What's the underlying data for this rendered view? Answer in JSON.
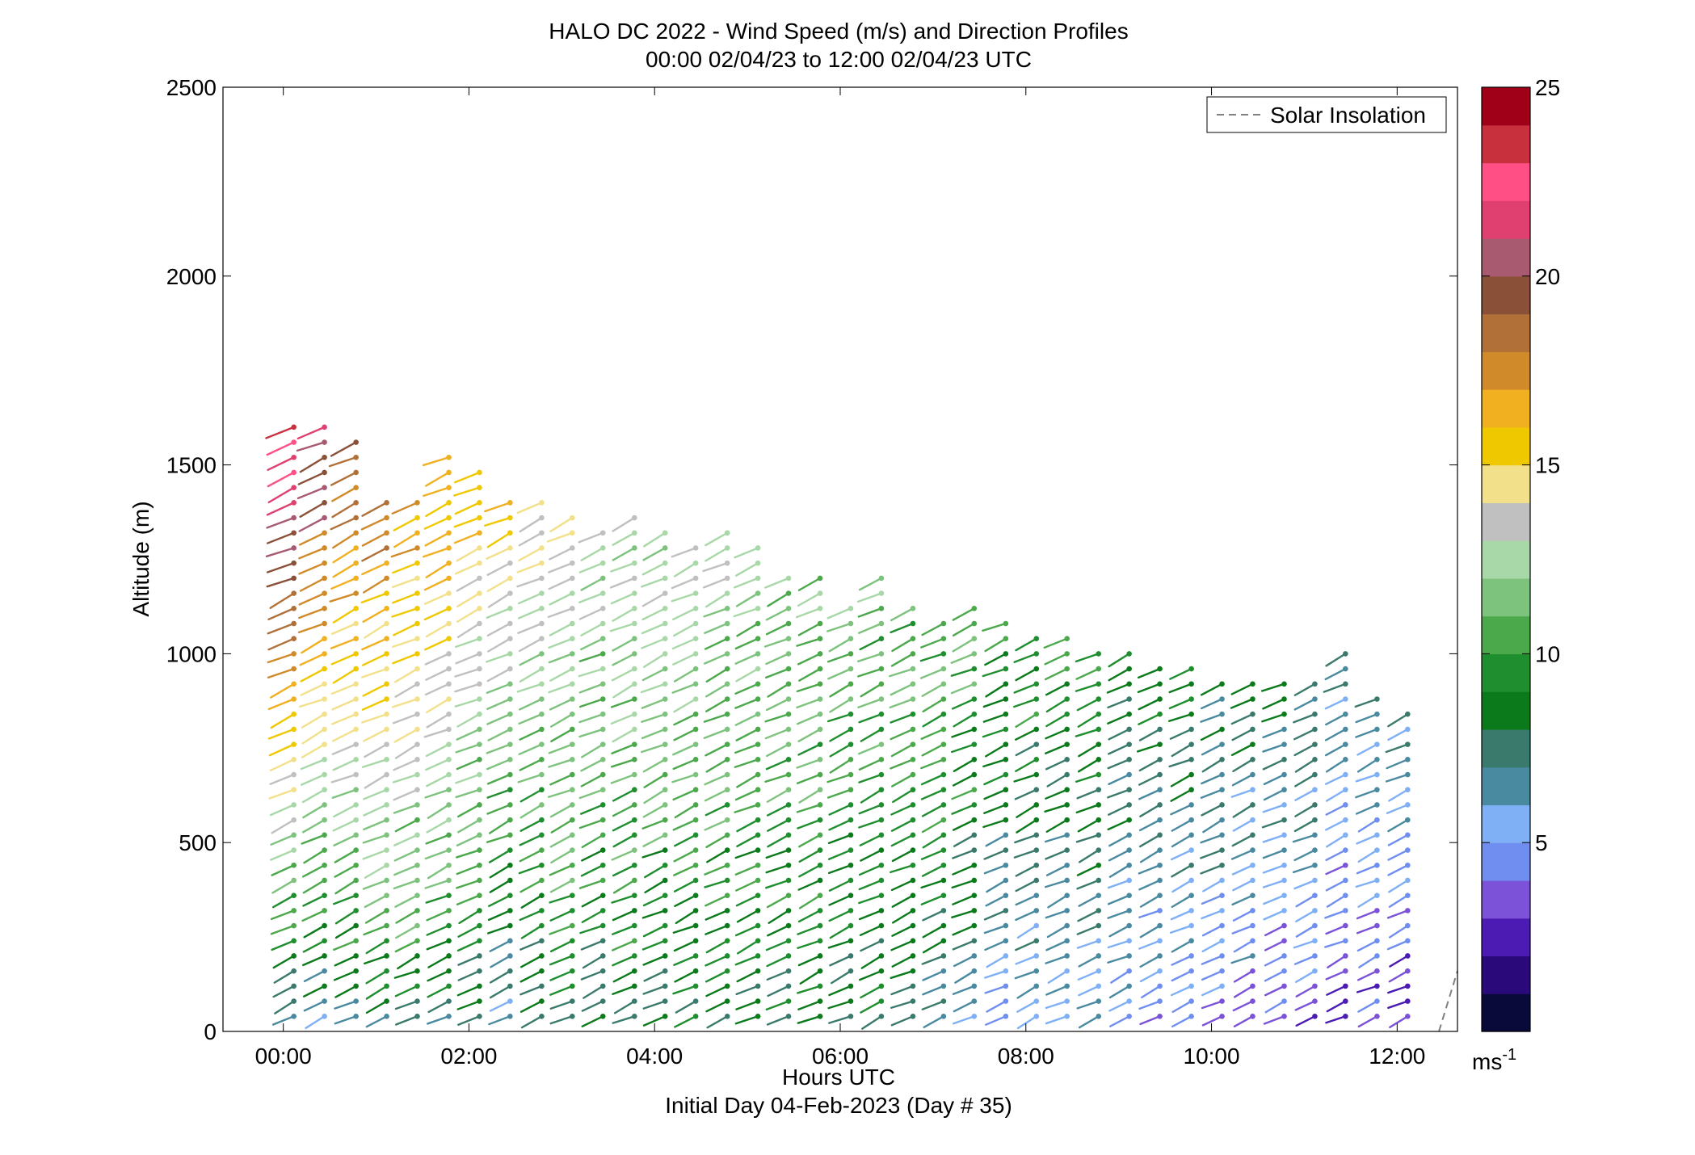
{
  "chart_data": {
    "type": "scatter",
    "subtype": "wind-barb-profile",
    "title_line1": "HALO DC 2022 - Wind Speed (m/s) and Direction Profiles",
    "title_line2": "00:00 02/04/23 to 12:00 02/04/23  UTC",
    "xlabel": "Hours UTC",
    "xlabel_sub": "Initial Day 04-Feb-2023 (Day # 35)",
    "ylabel": "Altitude (m)",
    "xlim": [
      -0.65,
      12.65
    ],
    "ylim": [
      0,
      2500
    ],
    "x_ticks": [
      0,
      2,
      4,
      6,
      8,
      10,
      12
    ],
    "x_tick_labels": [
      "00:00",
      "02:00",
      "04:00",
      "06:00",
      "08:00",
      "10:00",
      "12:00"
    ],
    "y_ticks": [
      0,
      500,
      1000,
      1500,
      2000,
      2500
    ],
    "y_tick_labels": [
      "0",
      "500",
      "1000",
      "1500",
      "2000",
      "2500"
    ],
    "legend": {
      "entries": [
        "Solar Insolation"
      ],
      "placement": "top-right",
      "line_style": "dashed",
      "color": "#808080"
    },
    "solar_insolation": {
      "x": [
        12.45,
        12.65
      ],
      "y": [
        0,
        160
      ]
    },
    "colorbar": {
      "label": "ms-1",
      "label_main": "ms",
      "label_sup": "-1",
      "range": [
        0,
        25
      ],
      "ticks": [
        5,
        10,
        15,
        20,
        25
      ],
      "tick_labels": [
        "5",
        "10",
        "15",
        "20",
        "25"
      ],
      "colors": [
        "#0a0a3a",
        "#2a0a7a",
        "#4b1bb4",
        "#7b52d8",
        "#6f8ef0",
        "#7fb0f5",
        "#4a8aa0",
        "#3a7a6c",
        "#0a7a1a",
        "#1e8e2e",
        "#4ba84b",
        "#7dc27d",
        "#a8d8a8",
        "#c0c0c0",
        "#f2e08a",
        "#f0c800",
        "#f0b020",
        "#d08a2a",
        "#b07038",
        "#8a5038",
        "#a85a70",
        "#e04070",
        "#ff4f85",
        "#c8303e",
        "#a00018"
      ]
    },
    "profile_times": [
      0.0,
      0.33,
      0.67,
      1.0,
      1.33,
      1.67,
      2.0,
      2.33,
      2.67,
      3.0,
      3.33,
      3.67,
      4.0,
      4.33,
      4.67,
      5.0,
      5.33,
      5.67,
      6.0,
      6.33,
      6.67,
      7.0,
      7.33,
      7.67,
      8.0,
      8.33,
      8.67,
      9.0,
      9.33,
      9.67,
      10.0,
      10.33,
      10.67,
      11.0,
      11.33,
      11.67,
      12.0
    ],
    "profile_top_heights": [
      1610,
      1610,
      1570,
      1410,
      1410,
      1530,
      1490,
      1410,
      1410,
      1370,
      1330,
      1370,
      1330,
      1290,
      1330,
      1290,
      1210,
      1210,
      1130,
      1210,
      1130,
      1090,
      1130,
      1090,
      1050,
      1050,
      1010,
      1010,
      970,
      970,
      950,
      950,
      950,
      930,
      1010,
      890,
      850
    ],
    "barb_spacing_m": 40,
    "barb_base_m": 40,
    "speed_profile_note_low": [
      6,
      6,
      7,
      8,
      8,
      8,
      7,
      6,
      7,
      8,
      8,
      8,
      8,
      8,
      8,
      8,
      8,
      8,
      8,
      8,
      7,
      7,
      6,
      5,
      5,
      5,
      5,
      5,
      4,
      4,
      4,
      4,
      3.5,
      3.5,
      3,
      3,
      2.5
    ],
    "speed_profile_note_high": [
      23,
      21,
      19,
      18,
      17,
      17,
      16,
      15,
      14,
      14,
      13,
      13,
      13,
      13,
      13,
      12,
      12,
      12,
      11,
      11,
      11,
      11,
      11,
      10,
      10,
      10,
      10,
      9,
      9,
      9,
      8,
      8,
      8,
      8,
      7,
      7,
      7
    ]
  }
}
